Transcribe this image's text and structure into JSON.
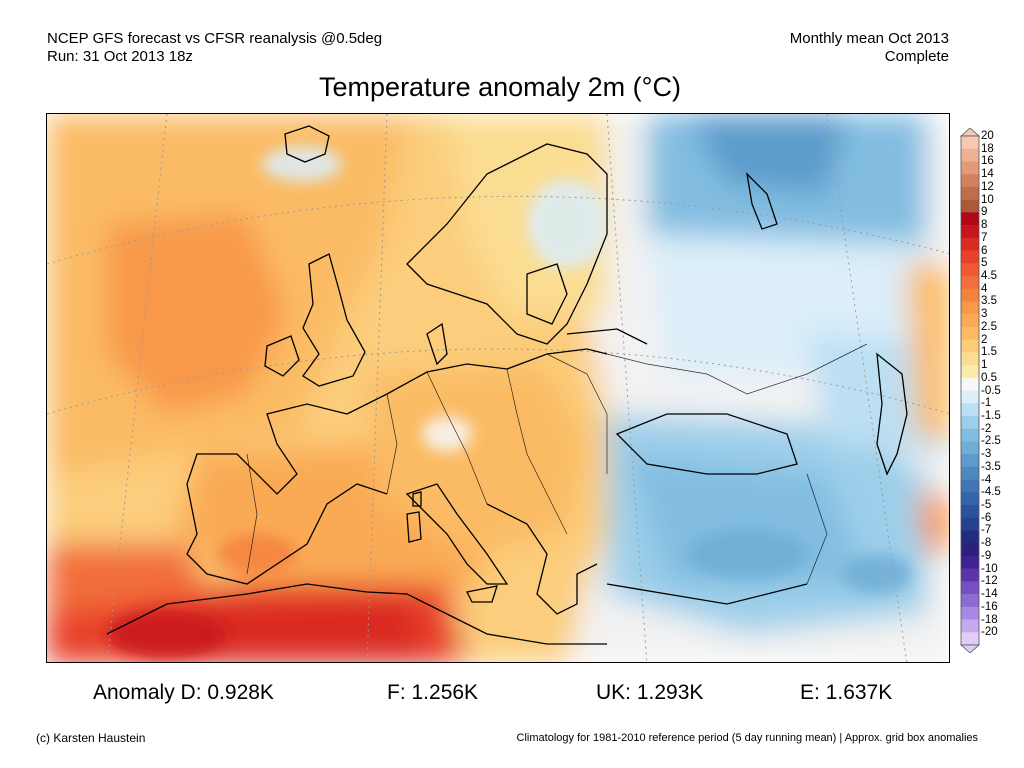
{
  "header": {
    "line1_left": "NCEP GFS forecast vs CFSR reanalysis @0.5deg",
    "line2_left": "Run: 31 Oct 2013 18z",
    "line1_right": "Monthly mean Oct 2013",
    "line2_right": "Complete",
    "title": "Temperature anomaly 2m (°C)"
  },
  "colorbar": {
    "labels": [
      "20",
      "18",
      "16",
      "14",
      "12",
      "10",
      "9",
      "8",
      "7",
      "6",
      "5",
      "4.5",
      "4",
      "3.5",
      "3",
      "2.5",
      "2",
      "1.5",
      "1",
      "0.5",
      "-0.5",
      "-1",
      "-1.5",
      "-2",
      "-2.5",
      "-3",
      "-3.5",
      "-4",
      "-4.5",
      "-5",
      "-6",
      "-7",
      "-8",
      "-9",
      "-10",
      "-12",
      "-14",
      "-16",
      "-18",
      "-20"
    ],
    "colors": [
      "#f6c9b4",
      "#efb193",
      "#e49a76",
      "#d28260",
      "#c06d4b",
      "#ab593a",
      "#b3051a",
      "#c8141f",
      "#da2a24",
      "#e8412b",
      "#ef5a33",
      "#f26e3a",
      "#f5823f",
      "#f89848",
      "#faaa55",
      "#fbbb65",
      "#fbcd7b",
      "#fbdd92",
      "#fbeaaa",
      "#f7f7f7",
      "#dbeef9",
      "#bcdff3",
      "#9dcfea",
      "#82bde1",
      "#6fadd6",
      "#5c9bcb",
      "#4d88bf",
      "#4076b3",
      "#3565a8",
      "#2c529d",
      "#254190",
      "#232b83",
      "#2d1f7e",
      "#3f2390",
      "#5a34a8",
      "#7450c0",
      "#8c6bd4",
      "#a788e2",
      "#c4a9ee",
      "#e1cdf7"
    ]
  },
  "stats": {
    "D": "Anomaly D: 0.928K",
    "F": "F: 1.256K",
    "UK": "UK: 1.293K",
    "E": "E: 1.637K"
  },
  "footer": {
    "left": "(c) Karsten Haustein",
    "right": "Climatology for 1981-2010 reference period (5 day running mean) | Approx. grid box anomalies"
  }
}
